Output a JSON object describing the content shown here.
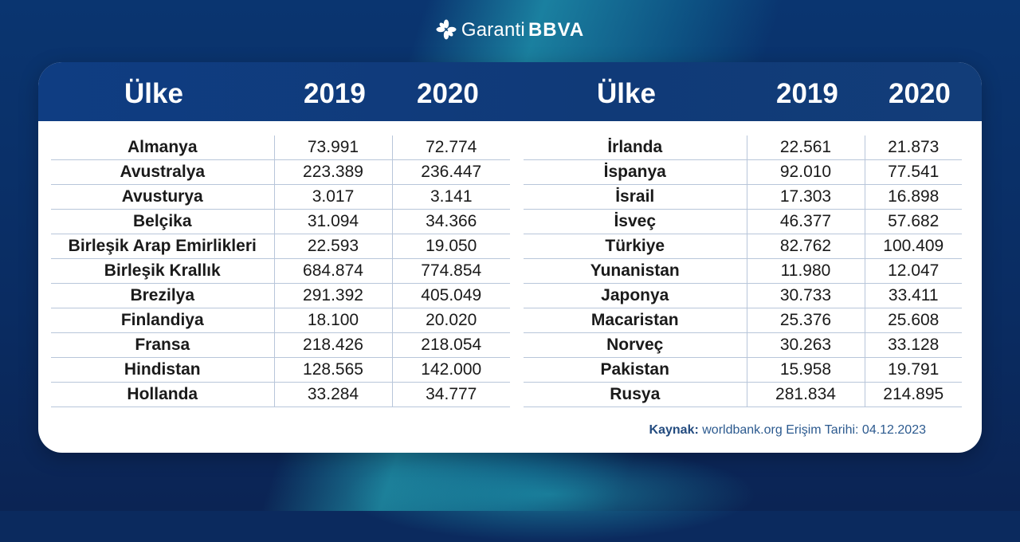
{
  "brand": {
    "name_part1": "Garanti",
    "name_part2": "BBVA"
  },
  "headers": {
    "left": {
      "country": "Ülke",
      "y2019": "2019",
      "y2020": "2020"
    },
    "right": {
      "country": "Ülke",
      "y2019": "2019",
      "y2020": "2020"
    }
  },
  "left_rows": [
    {
      "country": "Almanya",
      "y2019": "73.991",
      "y2020": "72.774"
    },
    {
      "country": "Avustralya",
      "y2019": "223.389",
      "y2020": "236.447"
    },
    {
      "country": "Avusturya",
      "y2019": "3.017",
      "y2020": "3.141"
    },
    {
      "country": "Belçika",
      "y2019": "31.094",
      "y2020": "34.366"
    },
    {
      "country": "Birleşik Arap Emirlikleri",
      "y2019": "22.593",
      "y2020": "19.050"
    },
    {
      "country": "Birleşik Krallık",
      "y2019": "684.874",
      "y2020": "774.854"
    },
    {
      "country": "Brezilya",
      "y2019": "291.392",
      "y2020": "405.049"
    },
    {
      "country": "Finlandiya",
      "y2019": "18.100",
      "y2020": "20.020"
    },
    {
      "country": "Fransa",
      "y2019": "218.426",
      "y2020": "218.054"
    },
    {
      "country": "Hindistan",
      "y2019": "128.565",
      "y2020": "142.000"
    },
    {
      "country": "Hollanda",
      "y2019": "33.284",
      "y2020": "34.777"
    }
  ],
  "right_rows": [
    {
      "country": "İrlanda",
      "y2019": "22.561",
      "y2020": "21.873"
    },
    {
      "country": "İspanya",
      "y2019": "92.010",
      "y2020": "77.541"
    },
    {
      "country": "İsrail",
      "y2019": "17.303",
      "y2020": "16.898"
    },
    {
      "country": "İsveç",
      "y2019": "46.377",
      "y2020": "57.682"
    },
    {
      "country": "Türkiye",
      "y2019": "82.762",
      "y2020": "100.409"
    },
    {
      "country": "Yunanistan",
      "y2019": "11.980",
      "y2020": "12.047"
    },
    {
      "country": "Japonya",
      "y2019": "30.733",
      "y2020": "33.411"
    },
    {
      "country": "Macaristan",
      "y2019": "25.376",
      "y2020": "25.608"
    },
    {
      "country": "Norveç",
      "y2019": "30.263",
      "y2020": "33.128"
    },
    {
      "country": "Pakistan",
      "y2019": "15.958",
      "y2020": "19.791"
    },
    {
      "country": "Rusya",
      "y2019": "281.834",
      "y2020": "214.895"
    }
  ],
  "source": {
    "label": "Kaynak:",
    "text": "worldbank.org Erişim Tarihi: 04.12.2023"
  },
  "colors": {
    "header_bg": "#103a78",
    "background": "#0b2a5e",
    "accent": "#2cc0c8"
  }
}
